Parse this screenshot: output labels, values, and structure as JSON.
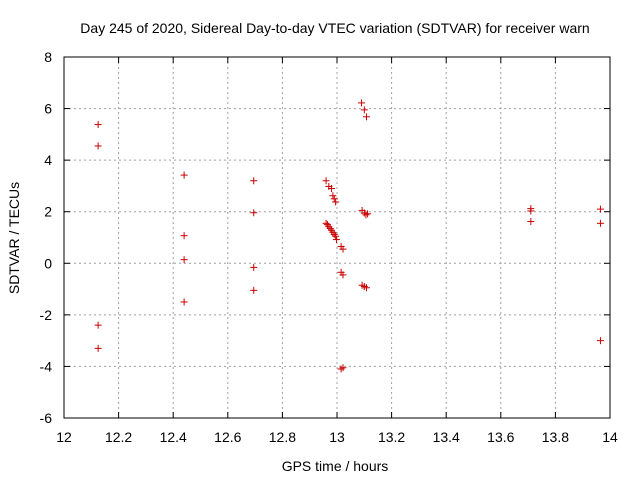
{
  "chart_data": {
    "type": "scatter",
    "title": "Day 245 of 2020, Sidereal Day-to-day VTEC variation (SDTVAR) for receiver warn",
    "xlabel": "GPS time / hours",
    "ylabel": "SDTVAR / TECUs",
    "xlim": [
      12,
      14
    ],
    "ylim": [
      -6,
      8
    ],
    "xticks": [
      12,
      12.2,
      12.4,
      12.6,
      12.8,
      13,
      13.2,
      13.4,
      13.6,
      13.8,
      14
    ],
    "yticks": [
      -6,
      -4,
      -2,
      0,
      2,
      4,
      6,
      8
    ],
    "xtick_labels": [
      "12",
      "12.2",
      "12.4",
      "12.6",
      "12.8",
      "13",
      "13.2",
      "13.4",
      "13.6",
      "13.8",
      "14"
    ],
    "ytick_labels": [
      "-6",
      "-4",
      "-2",
      "0",
      "2",
      "4",
      "6",
      "8"
    ],
    "grid": true,
    "marker": "+",
    "series": [
      {
        "name": "SDTVAR",
        "color": "#cc0000",
        "points": [
          {
            "x": 12.125,
            "y": 5.38
          },
          {
            "x": 12.125,
            "y": 4.55
          },
          {
            "x": 12.125,
            "y": -2.4
          },
          {
            "x": 12.125,
            "y": -3.3
          },
          {
            "x": 12.44,
            "y": 3.42
          },
          {
            "x": 12.44,
            "y": 1.07
          },
          {
            "x": 12.44,
            "y": 0.14
          },
          {
            "x": 12.44,
            "y": -1.5
          },
          {
            "x": 12.695,
            "y": 3.2
          },
          {
            "x": 12.695,
            "y": 1.96
          },
          {
            "x": 12.695,
            "y": -0.16
          },
          {
            "x": 12.695,
            "y": -1.05
          },
          {
            "x": 12.96,
            "y": 3.2
          },
          {
            "x": 12.97,
            "y": 2.98
          },
          {
            "x": 12.98,
            "y": 2.9
          },
          {
            "x": 12.985,
            "y": 2.62
          },
          {
            "x": 12.99,
            "y": 2.5
          },
          {
            "x": 12.995,
            "y": 2.38
          },
          {
            "x": 12.96,
            "y": 1.55
          },
          {
            "x": 12.965,
            "y": 1.5
          },
          {
            "x": 12.97,
            "y": 1.42
          },
          {
            "x": 12.975,
            "y": 1.35
          },
          {
            "x": 12.98,
            "y": 1.28
          },
          {
            "x": 12.985,
            "y": 1.2
          },
          {
            "x": 12.99,
            "y": 1.12
          },
          {
            "x": 12.995,
            "y": 1.05
          },
          {
            "x": 12.998,
            "y": 0.92
          },
          {
            "x": 13.015,
            "y": 0.65
          },
          {
            "x": 13.022,
            "y": 0.55
          },
          {
            "x": 13.015,
            "y": -0.35
          },
          {
            "x": 13.022,
            "y": -0.45
          },
          {
            "x": 13.015,
            "y": -4.1
          },
          {
            "x": 13.022,
            "y": -4.05
          },
          {
            "x": 13.09,
            "y": 6.22
          },
          {
            "x": 13.1,
            "y": 5.95
          },
          {
            "x": 13.108,
            "y": 5.68
          },
          {
            "x": 13.092,
            "y": 2.05
          },
          {
            "x": 13.1,
            "y": 1.95
          },
          {
            "x": 13.106,
            "y": 1.88
          },
          {
            "x": 13.112,
            "y": 1.92
          },
          {
            "x": 13.092,
            "y": -0.85
          },
          {
            "x": 13.1,
            "y": -0.9
          },
          {
            "x": 13.108,
            "y": -0.95
          },
          {
            "x": 13.71,
            "y": 2.12
          },
          {
            "x": 13.71,
            "y": 2.03
          },
          {
            "x": 13.71,
            "y": 1.62
          },
          {
            "x": 13.965,
            "y": 2.1
          },
          {
            "x": 13.965,
            "y": 1.55
          },
          {
            "x": 13.965,
            "y": -3.0
          }
        ]
      }
    ]
  }
}
